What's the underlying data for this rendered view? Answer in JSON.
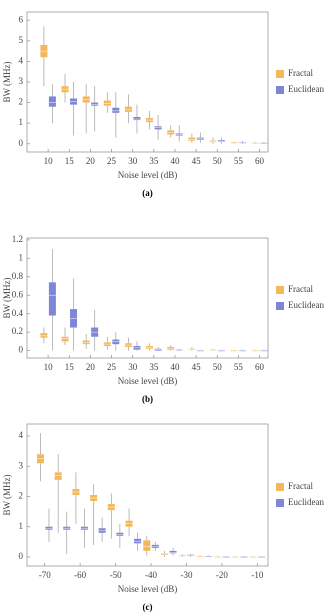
{
  "chart_data": [
    {
      "type": "box",
      "caption": "(a)",
      "xlabel": "Noise level (dB)",
      "ylabel": "BW (MHz)",
      "x": [
        10,
        15,
        20,
        25,
        30,
        35,
        40,
        45,
        50,
        55,
        60
      ],
      "xlim": [
        5,
        62
      ],
      "xticks": [
        10,
        15,
        20,
        25,
        30,
        35,
        40,
        45,
        50,
        55,
        60
      ],
      "ylim": [
        -0.4,
        6.4
      ],
      "yticks": [
        0,
        1,
        2,
        3,
        4,
        5,
        6
      ],
      "legend": "right",
      "series": [
        {
          "name": "Fractal",
          "color": "#f4b75a",
          "min": [
            2.8,
            2.0,
            0.5,
            1.5,
            1.0,
            0.7,
            0.3,
            0.05,
            0,
            0,
            0
          ],
          "q1": [
            4.2,
            2.5,
            2.0,
            1.85,
            1.55,
            1.05,
            0.45,
            0.15,
            0.08,
            0.03,
            0.02
          ],
          "median": [
            4.5,
            2.65,
            2.15,
            1.95,
            1.65,
            1.15,
            0.55,
            0.2,
            0.1,
            0.05,
            0.03
          ],
          "q3": [
            4.8,
            2.8,
            2.3,
            2.1,
            1.8,
            1.25,
            0.65,
            0.3,
            0.15,
            0.08,
            0.05
          ],
          "max": [
            5.7,
            3.4,
            2.9,
            2.5,
            2.4,
            1.6,
            0.9,
            0.5,
            0.3,
            0.12,
            0.08
          ]
        },
        {
          "name": "Euclidean",
          "color": "#7f86d6",
          "min": [
            1.0,
            0.4,
            0.6,
            0.3,
            0.5,
            0.2,
            0.1,
            0.05,
            0,
            0,
            0
          ],
          "q1": [
            1.8,
            1.9,
            1.85,
            1.5,
            1.15,
            0.7,
            0.4,
            0.2,
            0.1,
            0.04,
            0.02
          ],
          "median": [
            2.0,
            2.05,
            1.9,
            1.6,
            1.2,
            0.78,
            0.45,
            0.25,
            0.13,
            0.06,
            0.03
          ],
          "q3": [
            2.3,
            2.2,
            2.0,
            1.75,
            1.3,
            0.85,
            0.5,
            0.3,
            0.18,
            0.08,
            0.05
          ],
          "max": [
            2.9,
            3.0,
            2.8,
            2.5,
            1.9,
            1.4,
            0.9,
            0.55,
            0.3,
            0.15,
            0.08
          ]
        }
      ]
    },
    {
      "type": "box",
      "caption": "(b)",
      "xlabel": "Noise level (dB)",
      "ylabel": "BW (MHz)",
      "x": [
        10,
        15,
        20,
        25,
        30,
        35,
        40,
        45,
        50,
        55,
        60
      ],
      "xlim": [
        5,
        62
      ],
      "xticks": [
        10,
        15,
        20,
        25,
        30,
        35,
        40,
        45,
        50,
        55,
        60
      ],
      "ylim": [
        -0.08,
        1.22
      ],
      "yticks": [
        0,
        0.2,
        0.4,
        0.6,
        0.8,
        1,
        1.2
      ],
      "legend": "right",
      "series": [
        {
          "name": "Fractal",
          "color": "#f4b75a",
          "min": [
            0.08,
            0.06,
            0.02,
            0.01,
            0,
            0,
            0,
            0,
            0,
            0,
            0
          ],
          "q1": [
            0.14,
            0.1,
            0.07,
            0.05,
            0.04,
            0.02,
            0.01,
            0.01,
            0,
            0,
            0
          ],
          "median": [
            0.16,
            0.13,
            0.09,
            0.07,
            0.06,
            0.035,
            0.025,
            0.015,
            0.005,
            0,
            0
          ],
          "q3": [
            0.19,
            0.15,
            0.11,
            0.09,
            0.08,
            0.05,
            0.04,
            0.02,
            0.01,
            0.005,
            0.005
          ],
          "max": [
            0.25,
            0.25,
            0.18,
            0.15,
            0.14,
            0.08,
            0.06,
            0.04,
            0.02,
            0.01,
            0.01
          ]
        },
        {
          "name": "Euclidean",
          "color": "#7f86d6",
          "min": [
            0,
            0,
            0,
            0,
            0,
            0,
            0,
            0,
            0,
            0,
            0
          ],
          "q1": [
            0.38,
            0.25,
            0.15,
            0.07,
            0.01,
            0,
            0,
            0,
            0,
            0,
            0
          ],
          "median": [
            0.6,
            0.35,
            0.2,
            0.1,
            0.03,
            0.01,
            0.005,
            0,
            0,
            0,
            0
          ],
          "q3": [
            0.74,
            0.45,
            0.25,
            0.12,
            0.05,
            0.02,
            0.01,
            0.005,
            0.005,
            0.005,
            0.005
          ],
          "max": [
            1.1,
            0.78,
            0.44,
            0.2,
            0.1,
            0.04,
            0.02,
            0.01,
            0.01,
            0.01,
            0.01
          ]
        }
      ]
    },
    {
      "type": "box",
      "caption": "(c)",
      "xlabel": "Noise level (dB)",
      "ylabel": "BW (MHz)",
      "x": [
        -70,
        -65,
        -60,
        -55,
        -50,
        -45,
        -40,
        -35,
        -30,
        -25,
        -20,
        -15,
        -10
      ],
      "xlim": [
        -75,
        -7
      ],
      "xticks": [
        -70,
        -60,
        -50,
        -40,
        -30,
        -20,
        -10
      ],
      "ylim": [
        -0.3,
        4.4
      ],
      "yticks": [
        0,
        1,
        2,
        3,
        4
      ],
      "legend": "right",
      "series": [
        {
          "name": "Fractal",
          "color": "#f4b75a",
          "min": [
            2.5,
            0.8,
            1.1,
            0.4,
            0.6,
            0.7,
            0.05,
            0,
            0,
            0,
            0,
            0,
            0
          ],
          "q1": [
            3.1,
            2.55,
            2.05,
            1.85,
            1.55,
            1.0,
            0.2,
            0.07,
            0.03,
            0.01,
            0,
            0,
            0
          ],
          "median": [
            3.25,
            2.7,
            2.15,
            1.95,
            1.65,
            1.1,
            0.35,
            0.1,
            0.05,
            0.02,
            0.01,
            0.01,
            0.01
          ],
          "q3": [
            3.4,
            2.8,
            2.25,
            2.05,
            1.75,
            1.2,
            0.55,
            0.12,
            0.06,
            0.03,
            0.02,
            0.02,
            0.02
          ],
          "max": [
            4.1,
            3.4,
            2.8,
            2.4,
            2.1,
            1.6,
            0.7,
            0.2,
            0.1,
            0.05,
            0.04,
            0.03,
            0.03
          ]
        },
        {
          "name": "Euclidean",
          "color": "#7f86d6",
          "min": [
            0.5,
            0.1,
            0.3,
            0.5,
            0.3,
            0.2,
            0.2,
            0.05,
            0,
            0,
            0,
            0,
            0
          ],
          "q1": [
            0.9,
            0.9,
            0.9,
            0.8,
            0.7,
            0.45,
            0.3,
            0.12,
            0.04,
            0.01,
            0,
            0,
            0
          ],
          "median": [
            0.95,
            0.95,
            0.95,
            0.88,
            0.75,
            0.52,
            0.35,
            0.15,
            0.05,
            0.02,
            0.01,
            0.01,
            0.01
          ],
          "q3": [
            1.0,
            1.0,
            1.0,
            0.95,
            0.8,
            0.6,
            0.4,
            0.2,
            0.07,
            0.03,
            0.02,
            0.02,
            0.02
          ],
          "max": [
            1.6,
            1.5,
            1.6,
            1.3,
            1.1,
            0.8,
            0.5,
            0.3,
            0.1,
            0.05,
            0.04,
            0.03,
            0.03
          ]
        }
      ]
    }
  ]
}
